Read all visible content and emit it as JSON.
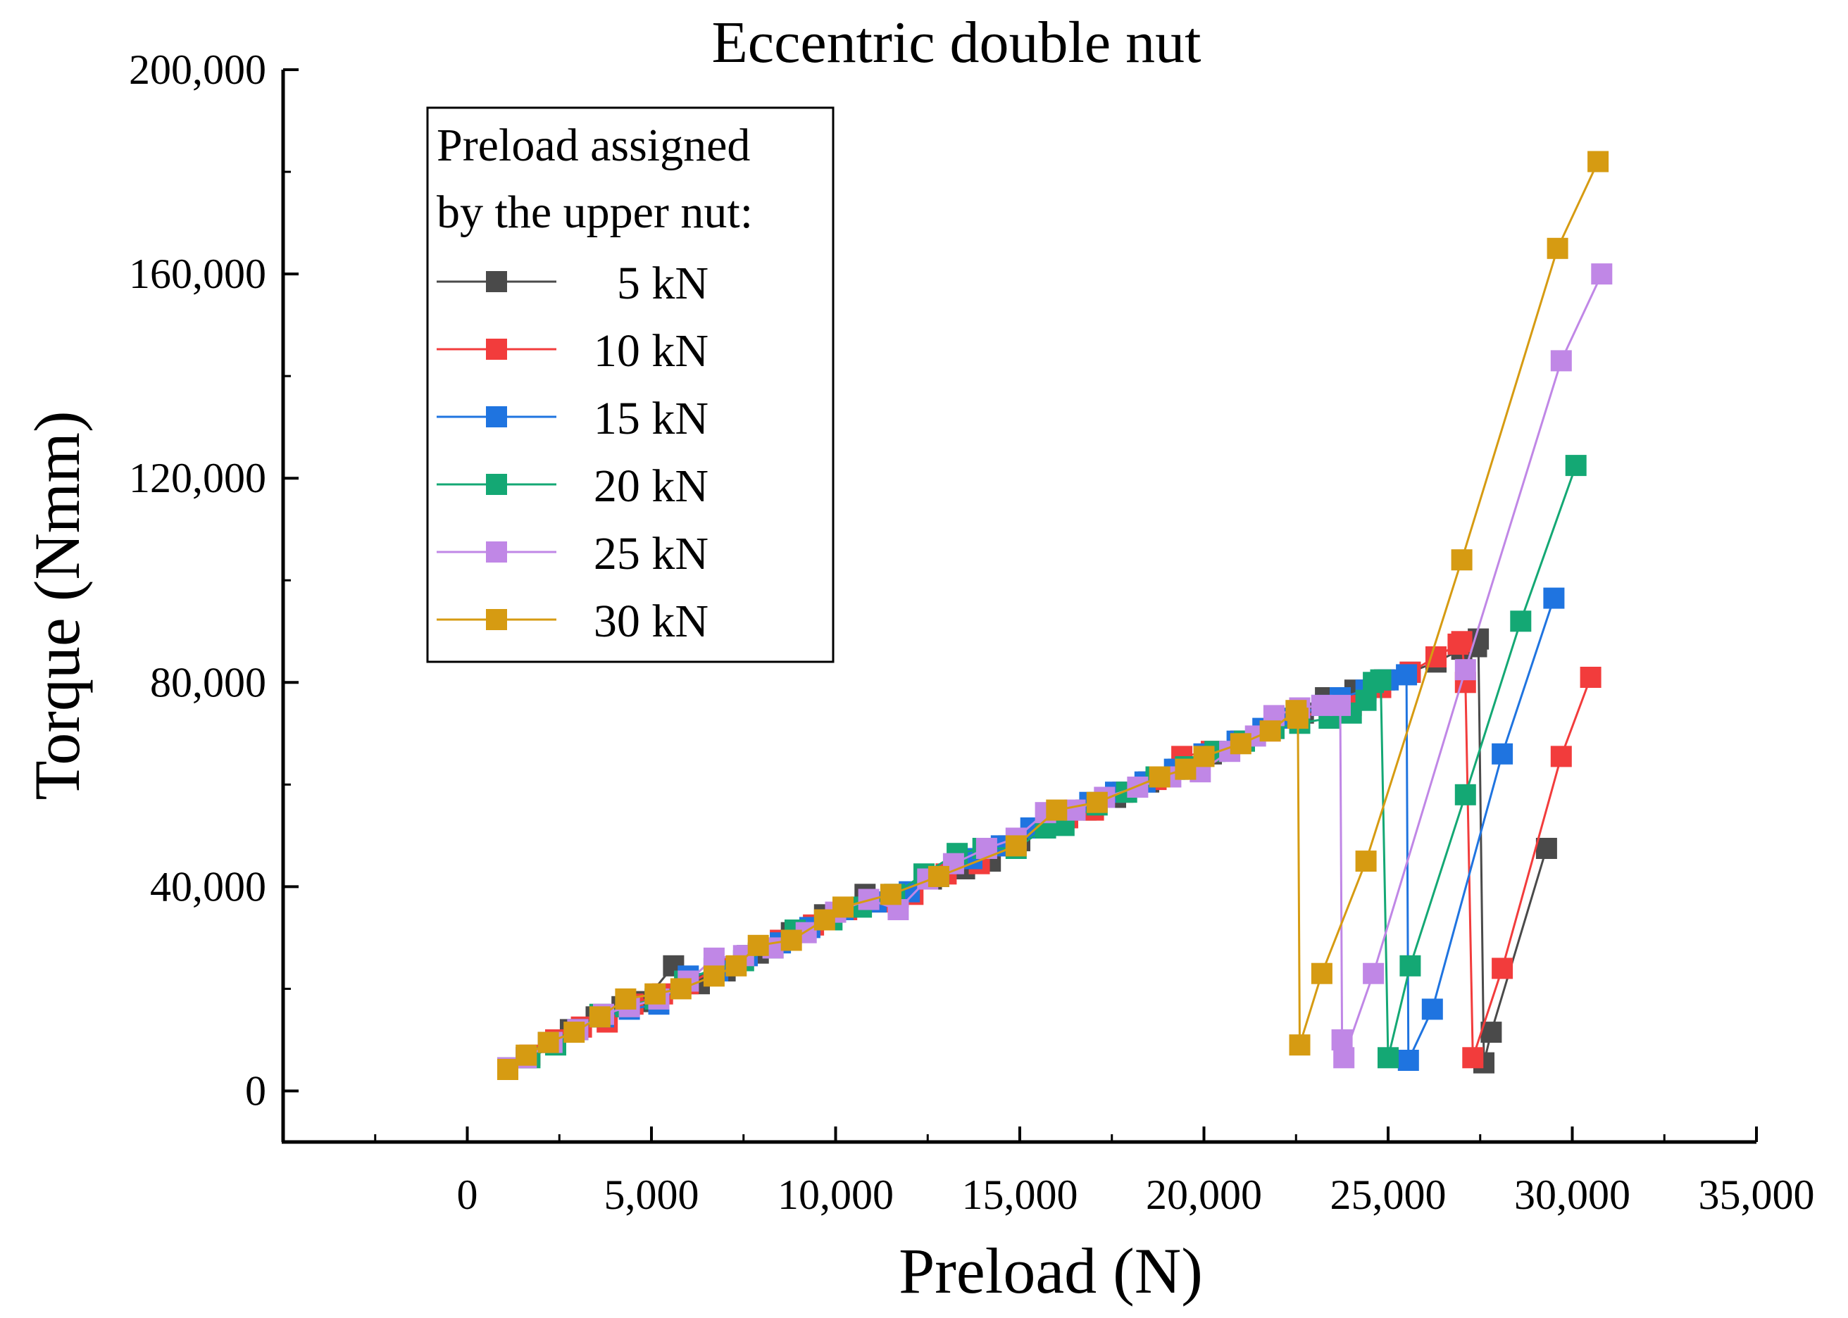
{
  "chart_data": {
    "type": "line",
    "title": "Eccentric double nut",
    "xlabel": "Preload (N)",
    "ylabel": "Torque (Nmm)",
    "xlim": [
      -5000,
      35000
    ],
    "ylim": [
      -10000,
      200000
    ],
    "x_ticks": [
      0,
      5000,
      10000,
      15000,
      20000,
      25000,
      30000,
      35000
    ],
    "x_tick_labels": [
      "0",
      "5,000",
      "10,000",
      "15,000",
      "20,000",
      "25,000",
      "30,000",
      "35,000"
    ],
    "y_ticks": [
      0,
      40000,
      80000,
      120000,
      160000,
      200000
    ],
    "y_tick_labels": [
      "0",
      "40,000",
      "80,000",
      "120,000",
      "160,000",
      "200,000"
    ],
    "grid": false,
    "legend": {
      "title_lines": [
        "Preload assigned",
        "by the upper nut:"
      ],
      "placement": "top-left"
    },
    "series": [
      {
        "name": "5 kN",
        "color": "#4a4a4a",
        "marker": "square",
        "points": [
          [
            1100,
            4200
          ],
          [
            1600,
            6500
          ],
          [
            2200,
            9500
          ],
          [
            2800,
            12000
          ],
          [
            3500,
            14500
          ],
          [
            4200,
            16500
          ],
          [
            4800,
            17500
          ],
          [
            5600,
            24500
          ],
          [
            6300,
            21000
          ],
          [
            7000,
            23500
          ],
          [
            7900,
            27000
          ],
          [
            8800,
            31000
          ],
          [
            9700,
            34500
          ],
          [
            10800,
            38500
          ],
          [
            11700,
            38000
          ],
          [
            12600,
            41500
          ],
          [
            13500,
            43500
          ],
          [
            14200,
            45000
          ],
          [
            15000,
            49000
          ],
          [
            16000,
            53000
          ],
          [
            16800,
            55000
          ],
          [
            17600,
            57500
          ],
          [
            18500,
            60500
          ],
          [
            19300,
            63000
          ],
          [
            20200,
            66000
          ],
          [
            21000,
            68500
          ],
          [
            21900,
            71000
          ],
          [
            22700,
            74000
          ],
          [
            23300,
            77000
          ],
          [
            24100,
            78500
          ],
          [
            24900,
            80500
          ],
          [
            25600,
            82000
          ],
          [
            26300,
            84000
          ],
          [
            27000,
            86500
          ],
          [
            27400,
            87000
          ],
          [
            27450,
            88500
          ],
          [
            27600,
            5500
          ],
          [
            27800,
            11500
          ],
          [
            29300,
            47500
          ]
        ]
      },
      {
        "name": "10 kN",
        "color": "#f23c3c",
        "marker": "square",
        "points": [
          [
            1100,
            4500
          ],
          [
            1700,
            7000
          ],
          [
            2400,
            10000
          ],
          [
            3100,
            12500
          ],
          [
            3800,
            13500
          ],
          [
            4500,
            17000
          ],
          [
            5300,
            19000
          ],
          [
            6000,
            21000
          ],
          [
            6800,
            24000
          ],
          [
            7600,
            26500
          ],
          [
            8500,
            29500
          ],
          [
            9400,
            32500
          ],
          [
            10300,
            35500
          ],
          [
            11200,
            37000
          ],
          [
            12100,
            38500
          ],
          [
            13000,
            42500
          ],
          [
            13900,
            44500
          ],
          [
            14700,
            48000
          ],
          [
            15500,
            51500
          ],
          [
            16300,
            53500
          ],
          [
            17000,
            55000
          ],
          [
            17800,
            58500
          ],
          [
            18700,
            61000
          ],
          [
            19400,
            65500
          ],
          [
            20200,
            66500
          ],
          [
            21000,
            68500
          ],
          [
            21800,
            70500
          ],
          [
            22600,
            73000
          ],
          [
            23400,
            75000
          ],
          [
            24000,
            75500
          ],
          [
            24800,
            79000
          ],
          [
            25600,
            82000
          ],
          [
            26300,
            85000
          ],
          [
            26900,
            87500
          ],
          [
            27000,
            88000
          ],
          [
            27100,
            80000
          ],
          [
            27300,
            6500
          ],
          [
            28100,
            24000
          ],
          [
            29700,
            65500
          ],
          [
            30500,
            81000
          ]
        ]
      },
      {
        "name": "15 kN",
        "color": "#1f74e0",
        "marker": "square",
        "points": [
          [
            1100,
            4500
          ],
          [
            1600,
            6500
          ],
          [
            2300,
            9500
          ],
          [
            3000,
            12000
          ],
          [
            3700,
            14500
          ],
          [
            4400,
            16000
          ],
          [
            5200,
            17000
          ],
          [
            6000,
            22500
          ],
          [
            6800,
            23500
          ],
          [
            7600,
            26500
          ],
          [
            8500,
            29000
          ],
          [
            9300,
            32000
          ],
          [
            10200,
            35500
          ],
          [
            11100,
            37000
          ],
          [
            12000,
            39000
          ],
          [
            12800,
            42000
          ],
          [
            13700,
            45500
          ],
          [
            14500,
            48000
          ],
          [
            15300,
            51500
          ],
          [
            16100,
            54000
          ],
          [
            16900,
            56500
          ],
          [
            17600,
            58500
          ],
          [
            18400,
            60500
          ],
          [
            19200,
            63000
          ],
          [
            20000,
            66000
          ],
          [
            20900,
            68500
          ],
          [
            21600,
            71000
          ],
          [
            22400,
            73000
          ],
          [
            23200,
            75500
          ],
          [
            23700,
            77000
          ],
          [
            24400,
            78500
          ],
          [
            25000,
            80500
          ],
          [
            25500,
            81500
          ],
          [
            25550,
            6000
          ],
          [
            26200,
            16000
          ],
          [
            28100,
            66000
          ],
          [
            29500,
            96500
          ]
        ]
      },
      {
        "name": "20 kN",
        "color": "#14a874",
        "marker": "square",
        "points": [
          [
            1100,
            4200
          ],
          [
            1700,
            6500
          ],
          [
            2400,
            9000
          ],
          [
            3000,
            12000
          ],
          [
            3600,
            15000
          ],
          [
            4300,
            16500
          ],
          [
            5100,
            18000
          ],
          [
            5900,
            21500
          ],
          [
            6700,
            24000
          ],
          [
            7500,
            25500
          ],
          [
            8300,
            28000
          ],
          [
            8900,
            31500
          ],
          [
            9900,
            33500
          ],
          [
            10700,
            36000
          ],
          [
            11600,
            38500
          ],
          [
            12400,
            42500
          ],
          [
            13300,
            46500
          ],
          [
            14000,
            47500
          ],
          [
            14900,
            47500
          ],
          [
            15700,
            51500
          ],
          [
            16200,
            52000
          ],
          [
            17100,
            56000
          ],
          [
            17900,
            58500
          ],
          [
            18700,
            61500
          ],
          [
            19500,
            63500
          ],
          [
            20300,
            66500
          ],
          [
            21100,
            68500
          ],
          [
            21900,
            71000
          ],
          [
            22600,
            72000
          ],
          [
            23400,
            73000
          ],
          [
            24000,
            74000
          ],
          [
            24400,
            76500
          ],
          [
            24600,
            80000
          ],
          [
            24800,
            80500
          ],
          [
            25000,
            6500
          ],
          [
            25600,
            24500
          ],
          [
            27100,
            58000
          ],
          [
            28600,
            92000
          ],
          [
            30100,
            122500
          ]
        ]
      },
      {
        "name": "25 kN",
        "color": "#c087e6",
        "marker": "square",
        "points": [
          [
            1100,
            4500
          ],
          [
            1600,
            6500
          ],
          [
            2300,
            9500
          ],
          [
            3000,
            12000
          ],
          [
            3700,
            15000
          ],
          [
            4400,
            16500
          ],
          [
            5200,
            18000
          ],
          [
            6000,
            21500
          ],
          [
            6700,
            26000
          ],
          [
            7500,
            26500
          ],
          [
            8300,
            28000
          ],
          [
            9200,
            31000
          ],
          [
            10000,
            35000
          ],
          [
            10900,
            37500
          ],
          [
            11700,
            35500
          ],
          [
            12500,
            41500
          ],
          [
            13200,
            44500
          ],
          [
            14100,
            47500
          ],
          [
            14900,
            49500
          ],
          [
            15700,
            54500
          ],
          [
            16500,
            55000
          ],
          [
            17300,
            57500
          ],
          [
            18200,
            59500
          ],
          [
            19100,
            61500
          ],
          [
            19900,
            62500
          ],
          [
            20700,
            66500
          ],
          [
            21400,
            69500
          ],
          [
            21900,
            73500
          ],
          [
            22600,
            75000
          ],
          [
            23200,
            75500
          ],
          [
            23700,
            75500
          ],
          [
            23750,
            10000
          ],
          [
            23800,
            6500
          ],
          [
            24600,
            23000
          ],
          [
            27100,
            82500
          ],
          [
            29700,
            143000
          ],
          [
            30800,
            160000
          ]
        ]
      },
      {
        "name": "30 kN",
        "color": "#d69b12",
        "marker": "square",
        "points": [
          [
            1100,
            4200
          ],
          [
            1600,
            7000
          ],
          [
            2200,
            9500
          ],
          [
            2900,
            11500
          ],
          [
            3600,
            14500
          ],
          [
            4300,
            18000
          ],
          [
            5100,
            19000
          ],
          [
            5800,
            20000
          ],
          [
            6700,
            22500
          ],
          [
            7300,
            24500
          ],
          [
            7900,
            28500
          ],
          [
            8800,
            29500
          ],
          [
            9700,
            33500
          ],
          [
            10200,
            36000
          ],
          [
            11500,
            38500
          ],
          [
            12800,
            42000
          ],
          [
            14900,
            48000
          ],
          [
            16000,
            55000
          ],
          [
            17100,
            56500
          ],
          [
            18800,
            61500
          ],
          [
            19500,
            63000
          ],
          [
            20000,
            65500
          ],
          [
            21000,
            68000
          ],
          [
            21800,
            70500
          ],
          [
            22500,
            74500
          ],
          [
            22550,
            73000
          ],
          [
            22600,
            9000
          ],
          [
            23200,
            23000
          ],
          [
            24400,
            45000
          ],
          [
            27000,
            104000
          ],
          [
            29600,
            165000
          ],
          [
            30700,
            182000
          ]
        ]
      }
    ]
  }
}
